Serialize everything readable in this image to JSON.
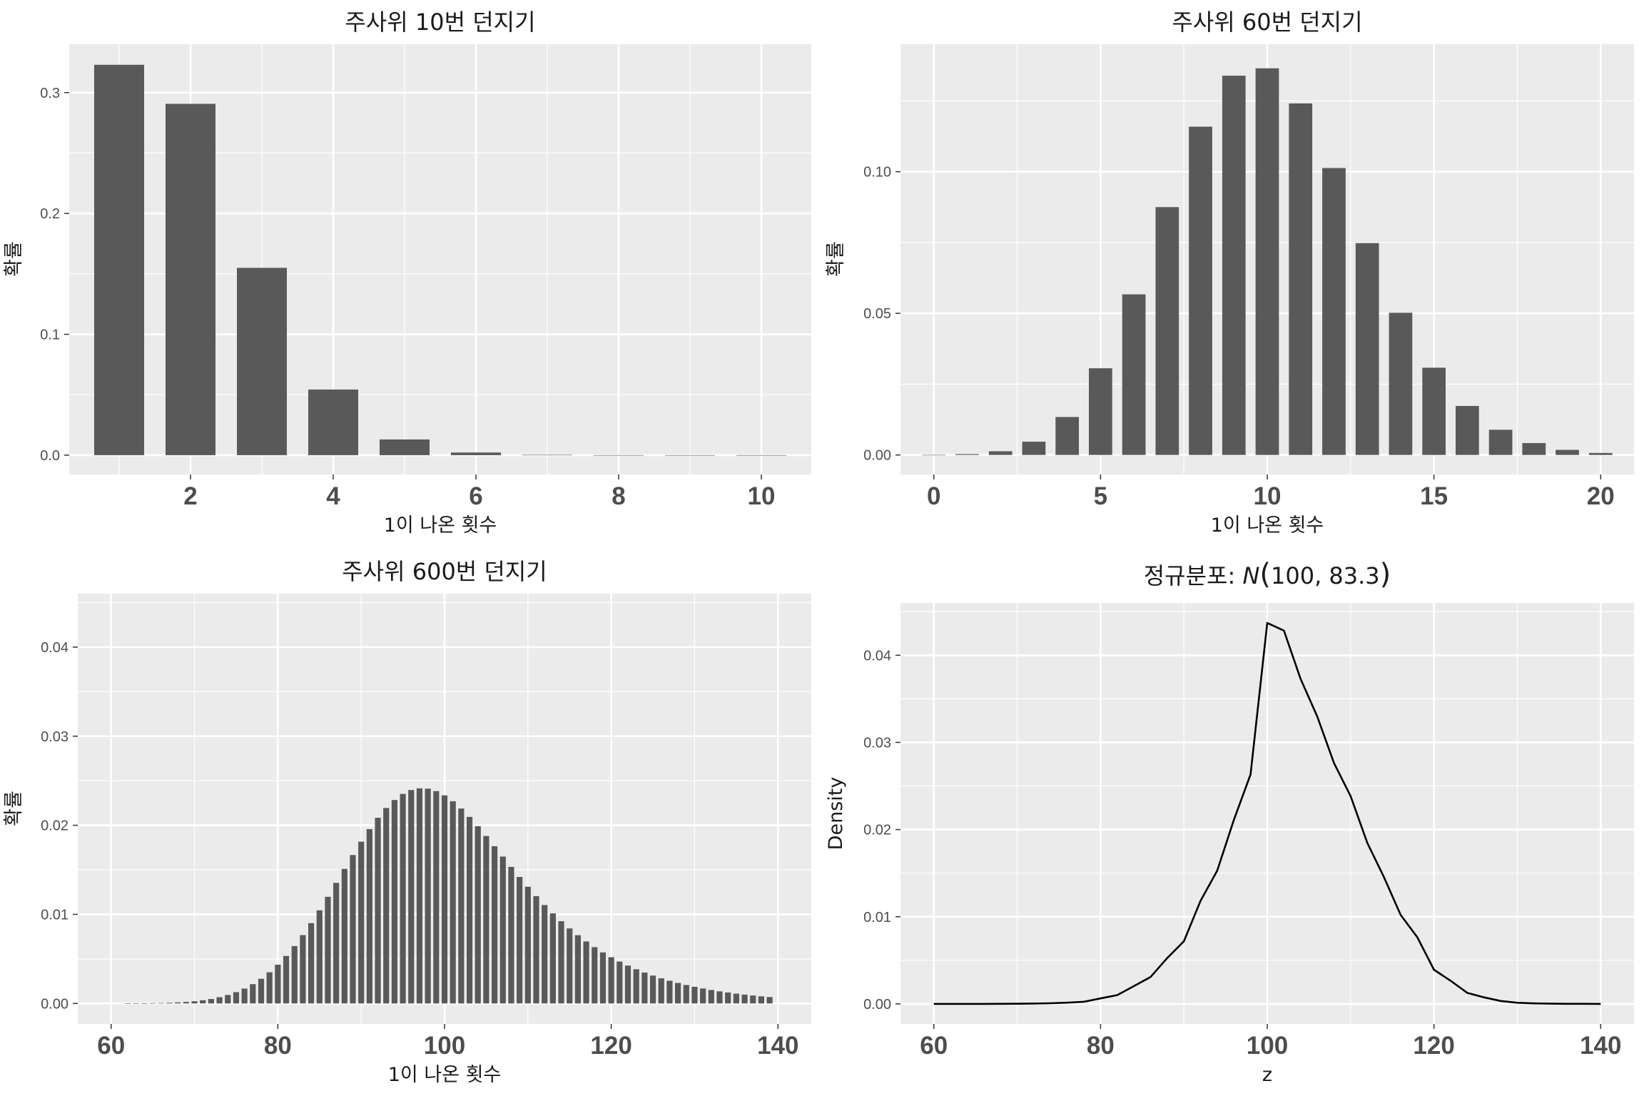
{
  "colors": {
    "panel_background": "#ebebeb",
    "grid": "#ffffff",
    "bar_fill": "#595959",
    "line": "#000000",
    "tick_text": "#4d4d4d",
    "title_text": "#1a1a1a"
  },
  "chart_data": [
    {
      "type": "bar",
      "title": "주사위 10번 던지기",
      "xlabel": "1이 나온 횟수",
      "ylabel": "확률",
      "grid": true,
      "xlim": [
        0.3,
        10.7
      ],
      "ylim": [
        -0.016,
        0.34
      ],
      "x_ticks": [
        2,
        4,
        6,
        8,
        10
      ],
      "x_tick_labels": [
        "2",
        "4",
        "6",
        "8",
        "10"
      ],
      "y_ticks": [
        0,
        0.1,
        0.2,
        0.3
      ],
      "y_tick_labels": [
        "0.0",
        "0.1",
        "0.2",
        "0.3"
      ],
      "bar_width": 0.7,
      "x": [
        1,
        2,
        3,
        4,
        5,
        6,
        7,
        8,
        9,
        10
      ],
      "values": [
        0.323,
        0.2907,
        0.155,
        0.0543,
        0.013,
        0.0022,
        0.00025,
        2e-05,
        8e-07,
        2e-08
      ]
    },
    {
      "type": "bar",
      "title": "주사위 60번 던지기",
      "xlabel": "1이 나온 횟수",
      "ylabel": "확률",
      "grid": true,
      "xlim": [
        -1,
        21
      ],
      "ylim": [
        -0.0069,
        0.145
      ],
      "x_ticks": [
        0,
        5,
        10,
        15,
        20
      ],
      "x_tick_labels": [
        "0",
        "5",
        "10",
        "15",
        "20"
      ],
      "y_ticks": [
        0,
        0.05,
        0.1
      ],
      "y_tick_labels": [
        "0.00",
        "0.05",
        "0.10"
      ],
      "bar_width": 0.7,
      "x": [
        0,
        1,
        2,
        3,
        4,
        5,
        6,
        7,
        8,
        9,
        10,
        11,
        12,
        13,
        14,
        15,
        16,
        17,
        18,
        19,
        20
      ],
      "values": [
        2e-05,
        0.0003,
        0.0013,
        0.0047,
        0.0134,
        0.0306,
        0.0567,
        0.0875,
        0.1159,
        0.1339,
        0.1365,
        0.1241,
        0.1013,
        0.0748,
        0.0502,
        0.0308,
        0.0173,
        0.0089,
        0.0042,
        0.0018,
        0.0007
      ]
    },
    {
      "type": "bar",
      "title": "주사위 600번 던지기",
      "xlabel": "1이 나온 횟수",
      "ylabel": "확률",
      "grid": true,
      "xlim": [
        56,
        144
      ],
      "ylim": [
        -0.0023,
        0.046
      ],
      "x_ticks": [
        60,
        80,
        100,
        120,
        140
      ],
      "x_tick_labels": [
        "60",
        "80",
        "100",
        "120",
        "140"
      ],
      "y_ticks": [
        0,
        0.01,
        0.02,
        0.03,
        0.04
      ],
      "y_tick_labels": [
        "0.00",
        "0.01",
        "0.02",
        "0.03",
        "0.04"
      ],
      "bar_width": 0.7,
      "x": [
        62,
        63,
        64,
        65,
        66,
        67,
        68,
        69,
        70,
        71,
        72,
        73,
        74,
        75,
        76,
        77,
        78,
        79,
        80,
        81,
        82,
        83,
        84,
        85,
        86,
        87,
        88,
        89,
        90,
        91,
        92,
        93,
        94,
        95,
        96,
        97,
        98,
        99,
        100,
        101,
        102,
        103,
        104,
        105,
        106,
        107,
        108,
        109,
        110,
        111,
        112,
        113,
        114,
        115,
        116,
        117,
        118,
        119,
        120,
        121,
        122,
        123,
        124,
        125,
        126,
        127,
        128,
        129,
        130,
        131,
        132,
        133,
        134,
        135,
        136,
        137,
        138,
        139
      ],
      "values": [
        1e-05,
        2e-05,
        2e-05,
        4e-05,
        5e-05,
        8e-05,
        0.00012,
        0.00017,
        0.00025,
        0.00036,
        0.0005,
        0.0007,
        0.00095,
        0.00127,
        0.00167,
        0.00217,
        0.00277,
        0.0035,
        0.00435,
        0.00533,
        0.00644,
        0.00767,
        0.00901,
        0.01045,
        0.01197,
        0.01353,
        0.0151,
        0.01666,
        0.01816,
        0.01957,
        0.02084,
        0.02194,
        0.02284,
        0.02352,
        0.02396,
        0.02415,
        0.02411,
        0.02384,
        0.02336,
        0.0227,
        0.02188,
        0.02094,
        0.0199,
        0.0188,
        0.01765,
        0.01649,
        0.01533,
        0.0142,
        0.0131,
        0.01205,
        0.01105,
        0.01011,
        0.00923,
        0.00842,
        0.00766,
        0.00696,
        0.00632,
        0.00573,
        0.00519,
        0.0047,
        0.00425,
        0.00384,
        0.00347,
        0.00313,
        0.00282,
        0.00255,
        0.0023,
        0.00207,
        0.00187,
        0.00168,
        0.00151,
        0.00136,
        0.00123,
        0.0011,
        0.00099,
        0.00089,
        0.0008,
        0.00072
      ]
    },
    {
      "type": "line",
      "title": "정규분포: ",
      "title_math": {
        "symbol": "N",
        "args": "100, 83.3"
      },
      "xlabel": "z",
      "ylabel": "Density",
      "grid": true,
      "xlim": [
        56,
        144
      ],
      "ylim": [
        -0.0023,
        0.046
      ],
      "x_ticks": [
        60,
        80,
        100,
        120,
        140
      ],
      "x_tick_labels": [
        "60",
        "80",
        "100",
        "120",
        "140"
      ],
      "y_ticks": [
        0,
        0.01,
        0.02,
        0.03,
        0.04
      ],
      "y_tick_labels": [
        "0.00",
        "0.01",
        "0.02",
        "0.03",
        "0.04"
      ],
      "x": [
        60,
        62,
        64,
        66,
        68,
        70,
        72,
        74,
        76,
        78,
        80,
        82,
        84,
        86,
        88,
        90,
        92,
        94,
        96,
        98,
        100,
        102,
        104,
        106,
        108,
        110,
        112,
        114,
        116,
        118,
        120,
        122,
        124,
        126,
        128,
        130,
        132,
        134,
        136,
        138,
        140
      ],
      "values": [
        3e-07,
        8e-07,
        2.3e-06,
        4.3e-06,
        1.13e-05,
        1.96e-05,
        4.42e-05,
        7.45e-05,
        0.000136,
        0.0002449,
        0.00063,
        0.00101,
        0.00204,
        0.00309,
        0.00526,
        0.00719,
        0.01182,
        0.01529,
        0.02113,
        0.02633,
        0.04371,
        0.04282,
        0.03729,
        0.03297,
        0.02764,
        0.02384,
        0.01848,
        0.01455,
        0.01022,
        0.00765,
        0.00392,
        0.00265,
        0.00126,
        0.00075,
        0.00034,
        0.00013,
        6.1e-05,
        2.8e-05,
        1.2e-05,
        5e-06,
        1.4e-06
      ]
    }
  ]
}
